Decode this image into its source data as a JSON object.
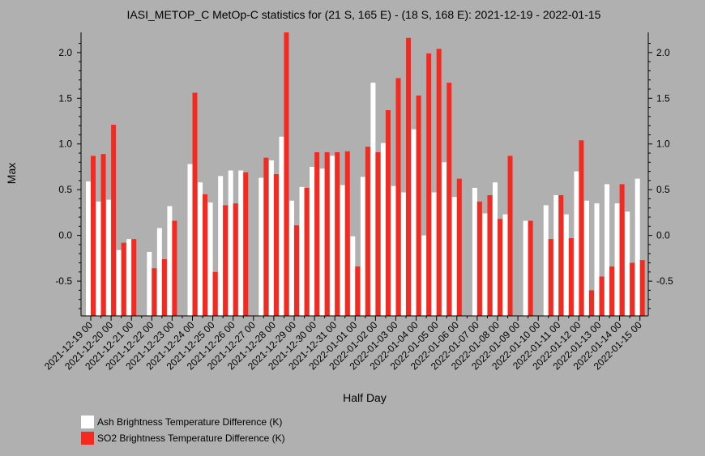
{
  "chart_data": {
    "type": "bar",
    "title": "IASI_METOP_C MetOp-C statistics for (21 S, 165 E) - (18 S, 168 E): 2021-12-19 - 2022-01-15",
    "xlabel": "Half Day",
    "ylabel": "Max",
    "ylim": [
      -0.88,
      2.22
    ],
    "yticks": [
      -0.5,
      0.0,
      0.5,
      1.0,
      1.5,
      2.0
    ],
    "ytick_labels": [
      "-0.5",
      "0.0",
      "0.5",
      "1.0",
      "1.5",
      "2.0"
    ],
    "xtick_labels": [
      "2021-12-19 00",
      "2021-12-20 00",
      "2021-12-21 00",
      "2021-12-22 00",
      "2021-12-23 00",
      "2021-12-24 00",
      "2021-12-25 00",
      "2021-12-26 00",
      "2021-12-27 00",
      "2021-12-28 00",
      "2021-12-29 00",
      "2021-12-30 00",
      "2021-12-31 00",
      "2022-01-01 00",
      "2022-01-02 00",
      "2022-01-03 00",
      "2022-01-04 00",
      "2022-01-05 00",
      "2022-01-06 00",
      "2022-01-07 00",
      "2022-01-08 00",
      "2022-01-09 00",
      "2022-01-10 00",
      "2022-01-11 00",
      "2022-01-12 00",
      "2022-01-13 00",
      "2022-01-14 00",
      "2022-01-15 00"
    ],
    "grid": false,
    "legend_position": "bottom-left",
    "series": [
      {
        "name": "Ash Brightness Temperature Difference (K)",
        "color": "#ffffff",
        "values": [
          0.59,
          0.37,
          0.39,
          -0.16,
          -0.04,
          null,
          -0.18,
          0.08,
          0.32,
          null,
          0.78,
          0.58,
          0.36,
          0.65,
          0.71,
          0.71,
          null,
          0.63,
          0.82,
          1.08,
          0.38,
          0.53,
          0.75,
          0.73,
          0.87,
          0.55,
          -0.01,
          0.64,
          1.67,
          1.01,
          0.54,
          0.47,
          1.16,
          0.0,
          0.47,
          0.8,
          0.42,
          null,
          0.52,
          0.24,
          0.58,
          0.23,
          null,
          0.16,
          null,
          0.33,
          0.44,
          0.23,
          0.7,
          0.38,
          0.35,
          0.56,
          0.35,
          0.26,
          0.62
        ]
      },
      {
        "name": "SO2 Brightness Temperature Difference (K)",
        "color": "#f42a21",
        "values": [
          0.87,
          0.89,
          1.21,
          -0.08,
          -0.04,
          null,
          -0.36,
          -0.26,
          0.16,
          null,
          1.56,
          0.45,
          -0.4,
          0.33,
          0.35,
          0.69,
          null,
          0.85,
          0.67,
          2.22,
          0.11,
          0.52,
          0.91,
          0.91,
          0.91,
          0.92,
          -0.34,
          0.97,
          0.91,
          1.37,
          1.72,
          2.16,
          1.53,
          1.99,
          2.04,
          1.67,
          0.62,
          null,
          0.37,
          0.44,
          0.18,
          0.87,
          null,
          0.16,
          null,
          -0.04,
          0.44,
          -0.03,
          1.04,
          -0.6,
          -0.45,
          -0.34,
          0.56,
          -0.3,
          -0.27
        ]
      }
    ]
  }
}
